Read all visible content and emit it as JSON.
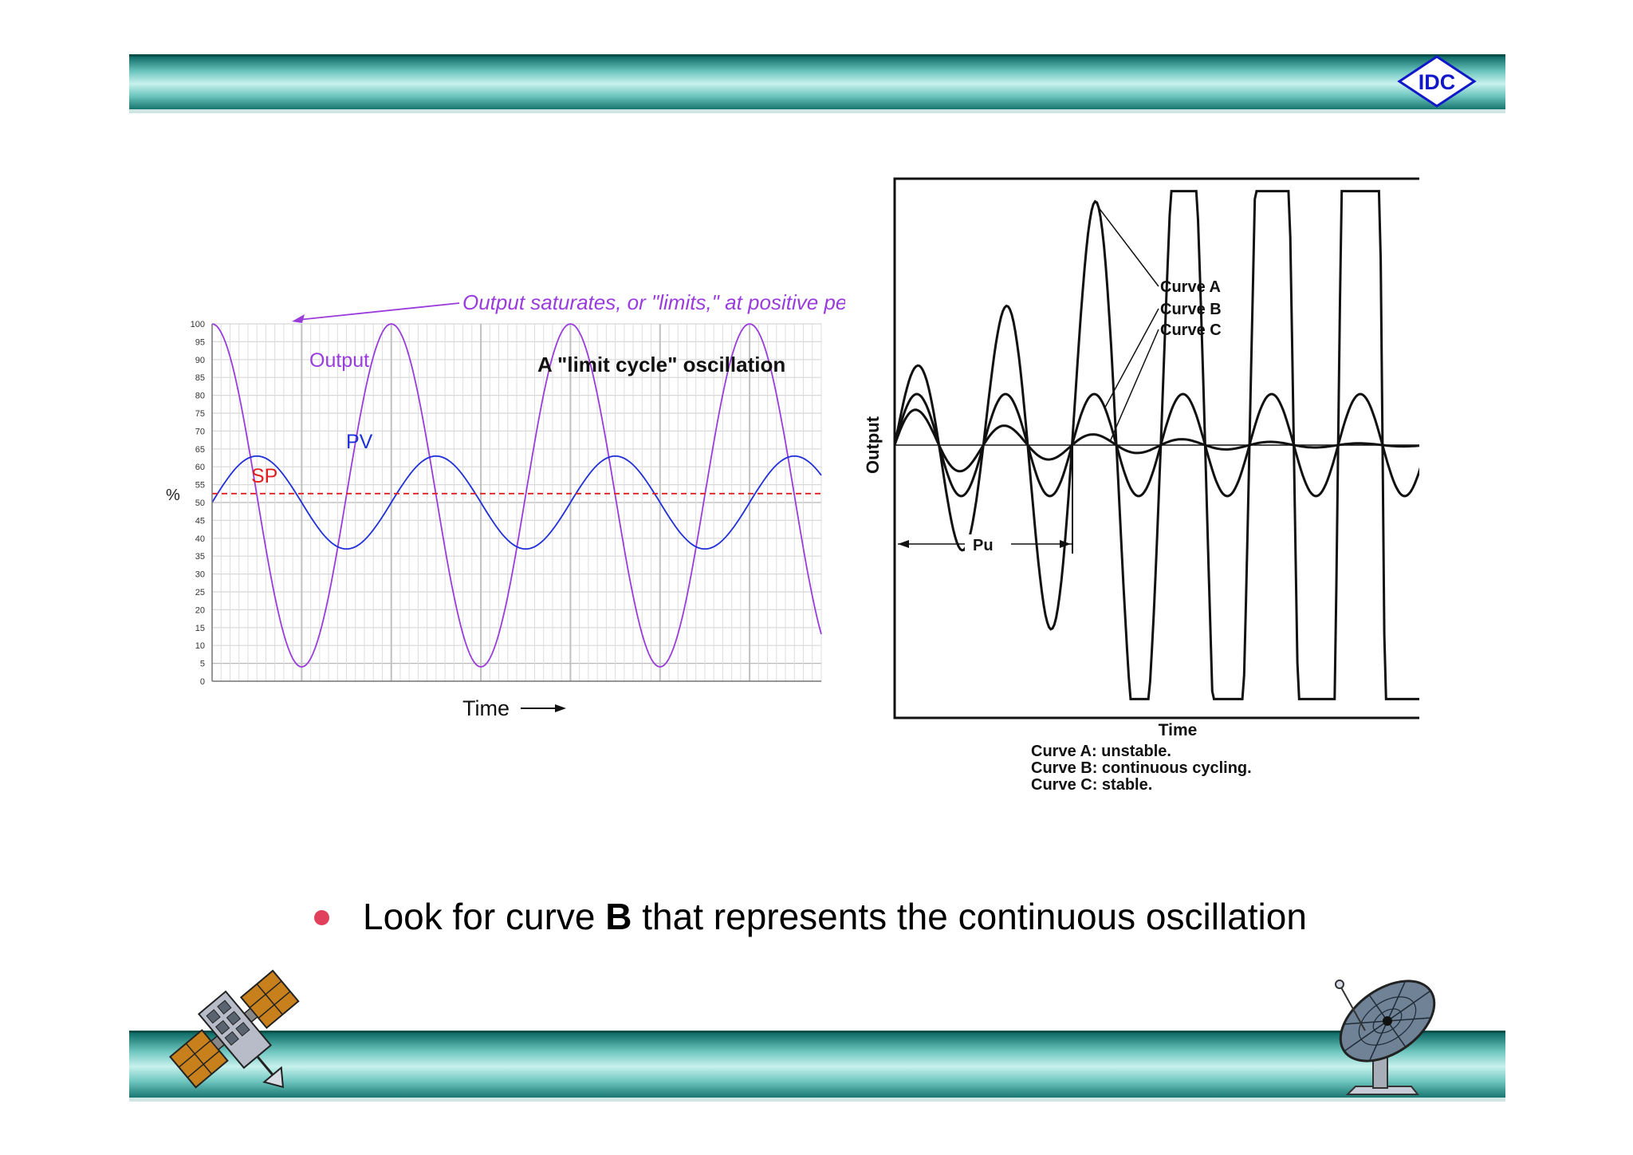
{
  "logo": {
    "text": "IDC",
    "color": "#1018c8"
  },
  "bullet": {
    "before": "Look for curve ",
    "bold": "B",
    "after": " that represents the continuous oscillation",
    "dot_color": "#e0405c"
  },
  "chart_data": [
    {
      "type": "line",
      "title": "A \"limit cycle\" oscillation",
      "annotation": "Output saturates, or \"limits,\" at positive peaks",
      "xlabel": "Time",
      "ylabel": "%",
      "ylim": [
        0,
        100
      ],
      "yticks": [
        0,
        5,
        10,
        15,
        20,
        25,
        30,
        35,
        40,
        45,
        50,
        55,
        60,
        65,
        70,
        75,
        80,
        85,
        90,
        95,
        100
      ],
      "grid": true,
      "period": 20,
      "x_range": [
        0,
        68
      ],
      "series": [
        {
          "name": "Output",
          "color": "#9a3cdc",
          "center": 52,
          "amplitude": 48,
          "phase_deg": 90,
          "saturation_max": 100
        },
        {
          "name": "PV",
          "color": "#2030d8",
          "center": 50,
          "amplitude": 13,
          "phase_deg": 0
        },
        {
          "name": "SP",
          "color": "#e02020",
          "constant": 52.5,
          "style": "dashed"
        }
      ]
    },
    {
      "type": "line",
      "xlabel": "Time",
      "ylabel": "Output",
      "period_label": "Pu",
      "legend": [
        "Curve A",
        "Curve B",
        "Curve C"
      ],
      "captions": [
        "Curve A: unstable.",
        "Curve B: continuous cycling.",
        "Curve C: stable."
      ],
      "x_range": [
        0,
        6.4
      ],
      "ylim": [
        -1,
        1
      ],
      "series": [
        {
          "name": "Curve A",
          "initial_amplitude": 0.27,
          "growth_per_cycle": 1.75,
          "color": "#111111"
        },
        {
          "name": "Curve B",
          "initial_amplitude": 0.2,
          "growth_per_cycle": 1.0,
          "color": "#111111"
        },
        {
          "name": "Curve C",
          "initial_amplitude": 0.16,
          "growth_per_cycle": 0.55,
          "color": "#111111"
        }
      ]
    }
  ]
}
